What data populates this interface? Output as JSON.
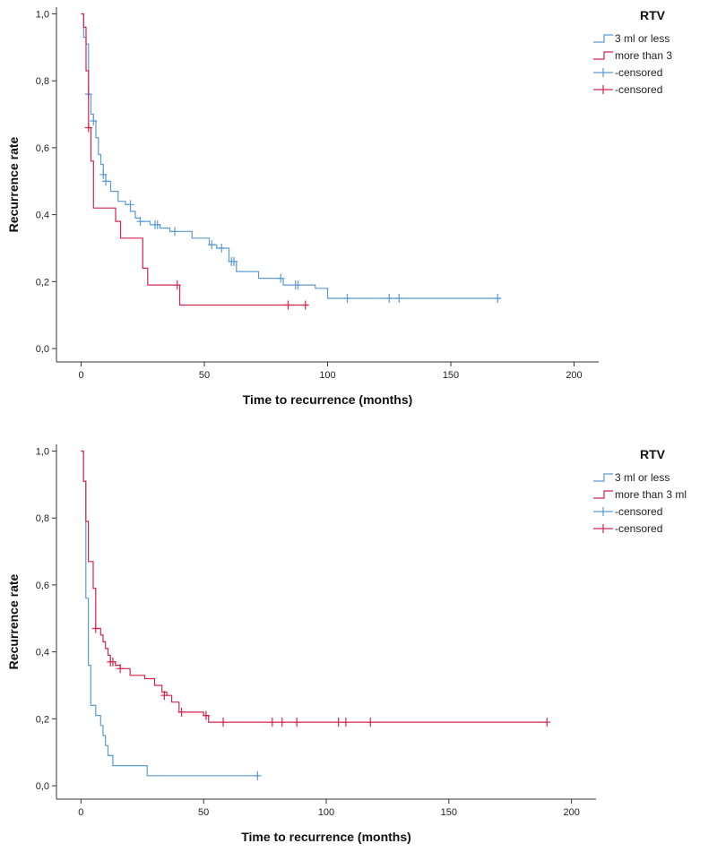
{
  "chart_data": [
    {
      "type": "line",
      "step": true,
      "xlabel": "Time to recurrence (months)",
      "ylabel": "Recurrence rate",
      "xlim": [
        -10,
        210
      ],
      "ylim": [
        -0.04,
        1.02
      ],
      "xticks": [
        0,
        50,
        100,
        150,
        200
      ],
      "yticks": [
        0.0,
        0.2,
        0.4,
        0.6,
        0.8,
        1.0
      ],
      "xtick_labels": [
        "0",
        "50",
        "100",
        "150",
        "200"
      ],
      "ytick_labels": [
        "0,0",
        "0,2",
        "0,4",
        "0,6",
        "0,8",
        "1,0"
      ],
      "grid": false,
      "legend": {
        "title": "RTV",
        "position": "top-right",
        "entries": [
          "3 ml or less",
          "more than 3",
          "-censored",
          "-censored"
        ]
      },
      "colors": [
        "#5b9bd5",
        "#d6254d"
      ],
      "series": [
        {
          "name": "3 ml or less",
          "x": [
            0,
            1,
            2,
            3,
            4,
            5,
            6,
            7,
            8,
            9,
            10,
            12,
            15,
            18,
            20,
            22,
            24,
            28,
            32,
            36,
            45,
            52,
            55,
            60,
            63,
            72,
            82,
            95,
            100,
            170
          ],
          "y": [
            1.0,
            0.93,
            0.91,
            0.76,
            0.7,
            0.68,
            0.63,
            0.58,
            0.55,
            0.52,
            0.5,
            0.47,
            0.44,
            0.43,
            0.41,
            0.39,
            0.38,
            0.37,
            0.36,
            0.35,
            0.33,
            0.31,
            0.3,
            0.26,
            0.23,
            0.21,
            0.19,
            0.18,
            0.15,
            0.15
          ],
          "censored": [
            [
              3,
              0.76
            ],
            [
              5,
              0.68
            ],
            [
              9,
              0.52
            ],
            [
              10,
              0.5
            ],
            [
              20,
              0.43
            ],
            [
              24,
              0.38
            ],
            [
              30,
              0.37
            ],
            [
              31,
              0.37
            ],
            [
              38,
              0.35
            ],
            [
              53,
              0.31
            ],
            [
              57,
              0.3
            ],
            [
              61,
              0.26
            ],
            [
              62,
              0.26
            ],
            [
              81,
              0.21
            ],
            [
              87,
              0.19
            ],
            [
              88,
              0.19
            ],
            [
              108,
              0.15
            ],
            [
              125,
              0.15
            ],
            [
              129,
              0.15
            ],
            [
              169,
              0.15
            ]
          ]
        },
        {
          "name": "more than 3",
          "x": [
            0,
            1,
            2,
            3,
            4,
            5,
            14,
            16,
            25,
            27,
            39,
            40,
            92
          ],
          "y": [
            1.0,
            0.96,
            0.83,
            0.66,
            0.56,
            0.42,
            0.38,
            0.33,
            0.24,
            0.19,
            0.19,
            0.13,
            0.13
          ],
          "censored": [
            [
              3,
              0.66
            ],
            [
              39,
              0.19
            ],
            [
              84,
              0.13
            ],
            [
              91,
              0.13
            ]
          ]
        }
      ]
    },
    {
      "type": "line",
      "step": true,
      "xlabel": "Time to recurrence (months)",
      "ylabel": "Recurrence rate",
      "xlim": [
        -10,
        210
      ],
      "ylim": [
        -0.04,
        1.02
      ],
      "xticks": [
        0,
        50,
        100,
        150,
        200
      ],
      "yticks": [
        0.0,
        0.2,
        0.4,
        0.6,
        0.8,
        1.0
      ],
      "xtick_labels": [
        "0",
        "50",
        "100",
        "150",
        "200"
      ],
      "ytick_labels": [
        "0,0",
        "0,2",
        "0,4",
        "0,6",
        "0,8",
        "1,0"
      ],
      "grid": false,
      "legend": {
        "title": "RTV",
        "position": "top-right",
        "entries": [
          "3 ml or less",
          "more than 3 ml",
          "-censored",
          "-censored"
        ]
      },
      "colors": [
        "#5b9bd5",
        "#d6254d"
      ],
      "series": [
        {
          "name": "3 ml or less",
          "x": [
            0,
            1,
            2,
            3,
            4,
            6,
            8,
            9,
            10,
            11,
            13,
            27,
            72
          ],
          "y": [
            1.0,
            0.91,
            0.56,
            0.36,
            0.24,
            0.21,
            0.18,
            0.15,
            0.12,
            0.09,
            0.06,
            0.03,
            0.03
          ],
          "censored": [
            [
              72,
              0.03
            ]
          ]
        },
        {
          "name": "more than 3 ml",
          "x": [
            0,
            1,
            2,
            3,
            5,
            6,
            8,
            9,
            10,
            11,
            12,
            14,
            16,
            20,
            26,
            30,
            33,
            35,
            37,
            40,
            50,
            52,
            190
          ],
          "y": [
            1.0,
            0.91,
            0.79,
            0.67,
            0.59,
            0.47,
            0.45,
            0.43,
            0.41,
            0.39,
            0.37,
            0.36,
            0.35,
            0.33,
            0.32,
            0.3,
            0.28,
            0.27,
            0.25,
            0.22,
            0.21,
            0.19,
            0.19
          ],
          "censored": [
            [
              6,
              0.47
            ],
            [
              12,
              0.37
            ],
            [
              13,
              0.37
            ],
            [
              16,
              0.35
            ],
            [
              34,
              0.27
            ],
            [
              41,
              0.22
            ],
            [
              51,
              0.21
            ],
            [
              58,
              0.19
            ],
            [
              78,
              0.19
            ],
            [
              82,
              0.19
            ],
            [
              88,
              0.19
            ],
            [
              105,
              0.19
            ],
            [
              108,
              0.19
            ],
            [
              118,
              0.19
            ],
            [
              190,
              0.19
            ]
          ]
        }
      ]
    }
  ]
}
